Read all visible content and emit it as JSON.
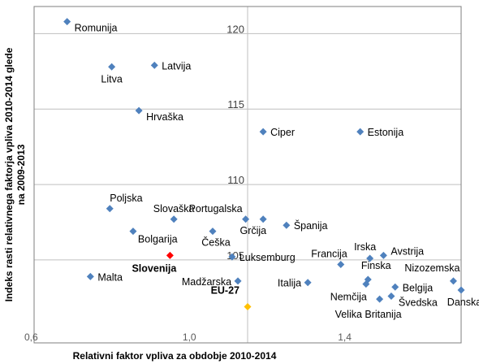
{
  "chart_data": {
    "type": "scatter",
    "title": "",
    "xlabel": "Relativni faktor vpliva za obdobje 2010-2014",
    "ylabel_lines": [
      "Indeks rasti relativnega faktorja vpliva 2010-2014 glede",
      "na 2009-2013"
    ],
    "xlim": [
      0.6,
      1.7
    ],
    "ylim": [
      99.5,
      121.8
    ],
    "x_ticks": [
      {
        "value": 0.6,
        "label": "0,6"
      },
      {
        "value": 1.0,
        "label": "1,0"
      },
      {
        "value": 1.4,
        "label": "1,4"
      }
    ],
    "y_ticks": [
      {
        "value": 105,
        "label": "105"
      },
      {
        "value": 110,
        "label": "110"
      },
      {
        "value": 115,
        "label": "115"
      },
      {
        "value": 120,
        "label": "120"
      }
    ],
    "vertical_reference_x": 1.15,
    "colors": {
      "default": "#4f81bd",
      "slovenia": "#ff0000",
      "eu27": "#ffc000",
      "grid": "#bfbfbf"
    },
    "points": [
      {
        "name": "Romunija",
        "x": 0.685,
        "y": 120.8,
        "color": "default",
        "pos": "right-below"
      },
      {
        "name": "Latvija",
        "x": 0.91,
        "y": 117.9,
        "color": "default",
        "pos": "right"
      },
      {
        "name": "Litva",
        "x": 0.8,
        "y": 117.8,
        "color": "default",
        "pos": "below"
      },
      {
        "name": "Hrvaška",
        "x": 0.87,
        "y": 114.9,
        "color": "default",
        "pos": "right-below"
      },
      {
        "name": "Ciper",
        "x": 1.19,
        "y": 113.5,
        "color": "default",
        "pos": "right"
      },
      {
        "name": "Estonija",
        "x": 1.44,
        "y": 113.5,
        "color": "default",
        "pos": "right"
      },
      {
        "name": "Poljska",
        "x": 0.795,
        "y": 108.4,
        "color": "default",
        "pos": "above-right"
      },
      {
        "name": "Slovaška",
        "x": 0.96,
        "y": 107.7,
        "color": "default",
        "pos": "above"
      },
      {
        "name": "Portugalska",
        "x": 1.145,
        "y": 107.7,
        "color": "default",
        "pos": "above-left"
      },
      {
        "name": "Grčija",
        "x": 1.19,
        "y": 107.7,
        "color": "default",
        "pos": "below-left"
      },
      {
        "name": "Španija",
        "x": 1.25,
        "y": 107.3,
        "color": "default",
        "pos": "right"
      },
      {
        "name": "Bolgarija",
        "x": 0.855,
        "y": 106.9,
        "color": "default",
        "pos": "right-below"
      },
      {
        "name": "Češka",
        "x": 1.06,
        "y": 106.9,
        "color": "default",
        "pos": "below"
      },
      {
        "name": "Francija",
        "x": 1.39,
        "y": 104.7,
        "color": "default",
        "pos": "above-left"
      },
      {
        "name": "Irska",
        "x": 1.465,
        "y": 105.1,
        "color": "default",
        "pos": "above"
      },
      {
        "name": "Avstrija",
        "x": 1.5,
        "y": 105.3,
        "color": "default",
        "pos": "right-above"
      },
      {
        "name": "Luksemburg",
        "x": 1.11,
        "y": 105.2,
        "color": "default",
        "pos": "right"
      },
      {
        "name": "Slovenija",
        "x": 0.95,
        "y": 105.3,
        "color": "slovenia",
        "pos": "below-left",
        "label_color": "#ff0000",
        "label_bold": true
      },
      {
        "name": "Malta",
        "x": 0.745,
        "y": 103.9,
        "color": "default",
        "pos": "right"
      },
      {
        "name": "Madžarska",
        "x": 1.125,
        "y": 103.6,
        "color": "default",
        "pos": "left"
      },
      {
        "name": "Italija",
        "x": 1.305,
        "y": 103.5,
        "color": "default",
        "pos": "left"
      },
      {
        "name": "Finska",
        "x": 1.46,
        "y": 103.7,
        "color": "default",
        "pos": "above"
      },
      {
        "name": "Nemčija",
        "x": 1.455,
        "y": 103.4,
        "color": "default",
        "pos": "below-left"
      },
      {
        "name": "Nizozemska",
        "x": 1.68,
        "y": 103.6,
        "color": "default",
        "pos": "above-left"
      },
      {
        "name": "Belgija",
        "x": 1.53,
        "y": 103.2,
        "color": "default",
        "pos": "right"
      },
      {
        "name": "Danska",
        "x": 1.7,
        "y": 103.0,
        "color": "default",
        "pos": "below"
      },
      {
        "name": "Švedska",
        "x": 1.52,
        "y": 102.6,
        "color": "default",
        "pos": "right-below"
      },
      {
        "name": "Velika Britanija",
        "x": 1.49,
        "y": 102.4,
        "color": "default",
        "pos": "below"
      },
      {
        "name": "EU-27",
        "x": 1.15,
        "y": 101.9,
        "color": "eu27",
        "pos": "above-left",
        "label_color": "#ffc000",
        "label_bold": true
      }
    ]
  }
}
